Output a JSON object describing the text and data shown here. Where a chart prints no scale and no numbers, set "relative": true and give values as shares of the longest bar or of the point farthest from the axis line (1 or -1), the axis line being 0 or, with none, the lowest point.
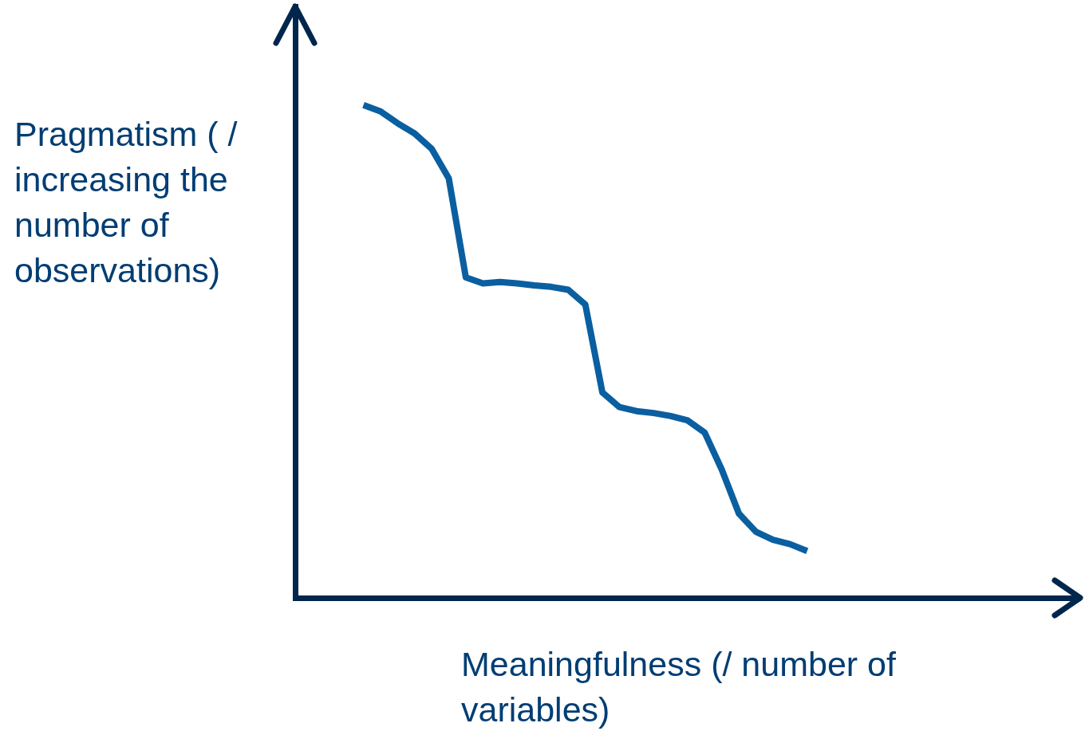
{
  "chart_data": {
    "type": "line",
    "relative": true,
    "xlabel": "Meaningfulness (/ number of variables)",
    "ylabel": "Pragmatism ( / increasing the number of observations)",
    "categories": [
      null,
      null,
      null,
      null,
      null,
      null,
      null,
      null,
      null,
      null,
      null,
      null,
      null,
      null,
      null,
      null,
      null,
      null,
      null,
      null,
      null,
      null,
      null,
      null,
      null,
      null,
      null,
      null,
      null,
      null,
      null,
      null,
      null,
      null,
      null,
      null,
      null,
      null,
      null,
      null,
      null,
      null,
      null,
      null,
      null,
      null,
      null
    ],
    "series": [
      {
        "color": "#0a5fa0",
        "values": [
          null,
          null,
          null,
          null,
          1.0,
          0.987,
          0.963,
          0.942,
          0.911,
          0.851,
          0.65,
          0.638,
          0.641,
          0.638,
          0.634,
          0.631,
          0.625,
          0.595,
          0.417,
          0.387,
          0.379,
          0.375,
          0.369,
          0.36,
          0.335,
          0.26,
          0.171,
          0.134,
          0.118,
          0.109,
          0.095,
          null,
          null,
          null,
          null,
          null,
          null,
          null,
          null,
          null,
          null,
          null,
          null,
          null,
          null,
          null,
          null
        ]
      }
    ],
    "marker": "none",
    "grid": false,
    "legend": false
  }
}
